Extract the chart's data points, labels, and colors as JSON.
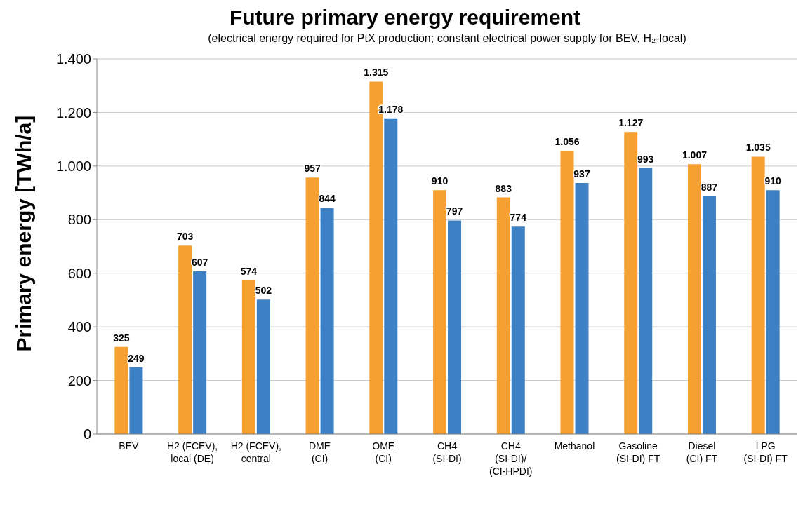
{
  "chart_data": {
    "type": "bar",
    "title": "Future primary energy requirement",
    "subtitle": "(electrical energy required for PtX production; constant electrical power supply for BEV, H₂-local)",
    "ylabel": "Primary energy [TWh/a]",
    "categories": [
      "BEV",
      "H2 (FCEV),\nlocal (DE)",
      "H2 (FCEV),\ncentral",
      "DME\n(CI)",
      "OME\n(CI)",
      "CH4\n(SI-DI)",
      "CH4\n(SI-DI)/\n(CI-HPDI)",
      "Methanol",
      "Gasoline\n(SI-DI) FT",
      "Diesel\n(CI) FT",
      "LPG\n(SI-DI) FT"
    ],
    "series": [
      {
        "color": "#f5a030",
        "values": [
          325,
          703,
          574,
          957,
          1315,
          910,
          883,
          1056,
          1127,
          1007,
          1035
        ],
        "value_labels": [
          "325",
          "703",
          "574",
          "957",
          "1.315",
          "910",
          "883",
          "1.056",
          "1.127",
          "1.007",
          "1.035"
        ]
      },
      {
        "color": "#3d80c4",
        "values": [
          249,
          607,
          502,
          844,
          1178,
          797,
          774,
          937,
          993,
          887,
          910
        ],
        "value_labels": [
          "249",
          "607",
          "502",
          "844",
          "1.178",
          "797",
          "774",
          "937",
          "993",
          "887",
          "910"
        ]
      }
    ],
    "ylim": [
      0,
      1400
    ],
    "yticks": [
      0,
      200,
      400,
      600,
      800,
      {
        "value": 1000,
        "label": "1.000"
      },
      {
        "value": 1200,
        "label": "1.200"
      },
      {
        "value": 1400,
        "label": "1.400"
      }
    ],
    "grid": "y",
    "legend": false
  }
}
